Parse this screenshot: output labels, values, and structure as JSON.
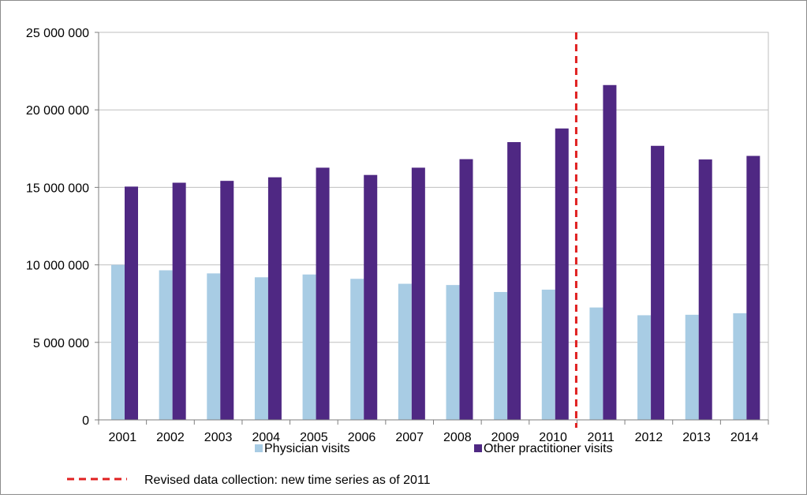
{
  "chart_data": {
    "type": "bar",
    "title": "",
    "xlabel": "",
    "ylabel": "",
    "categories": [
      "2001",
      "2002",
      "2003",
      "2004",
      "2005",
      "2006",
      "2007",
      "2008",
      "2009",
      "2010",
      "2011",
      "2012",
      "2013",
      "2014"
    ],
    "series": [
      {
        "name": "Physician visits",
        "color": "#a8cce4",
        "values": [
          10000000,
          9650000,
          9450000,
          9200000,
          9380000,
          9100000,
          8780000,
          8700000,
          8250000,
          8400000,
          7250000,
          6750000,
          6780000,
          6880000
        ]
      },
      {
        "name": "Other practitioner visits",
        "color": "#4f2883",
        "values": [
          15050000,
          15300000,
          15420000,
          15650000,
          16270000,
          15800000,
          16270000,
          16820000,
          17920000,
          18800000,
          21600000,
          17680000,
          16800000,
          17030000
        ]
      }
    ],
    "ylim": [
      0,
      25000000
    ],
    "yticks": [
      0,
      5000000,
      10000000,
      15000000,
      20000000,
      25000000
    ],
    "ytick_labels": [
      "0",
      "5 000 000",
      "10 000 000",
      "15 000 000",
      "20 000 000",
      "25 000 000"
    ],
    "grid": true,
    "legend_position": "bottom",
    "annotation": {
      "type": "vertical-dashed-line",
      "between": [
        "2010",
        "2011"
      ],
      "color": "#e02020",
      "label": "Revised data collection: new time series as of 2011"
    }
  }
}
